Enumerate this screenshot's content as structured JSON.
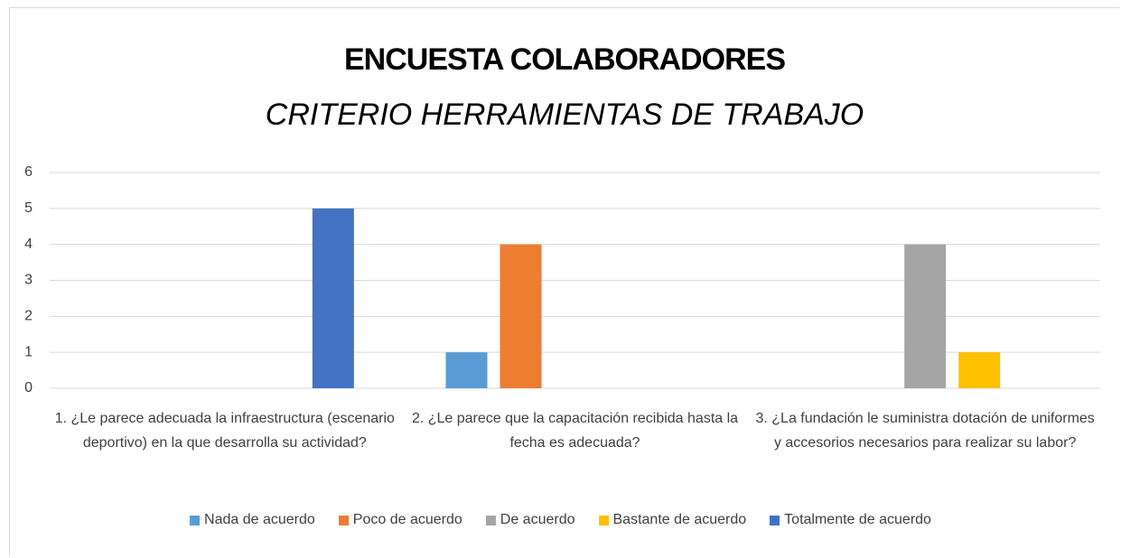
{
  "chart_data": {
    "type": "bar",
    "title": "ENCUESTA COLABORADORES",
    "subtitle": "CRITERIO HERRAMIENTAS DE TRABAJO",
    "categories": [
      "1. ¿Le parece adecuada la infraestructura (escenario deportivo)  en la que desarrolla su actividad?",
      "2. ¿Le parece que la capacitación recibida hasta la fecha es adecuada?",
      "3. ¿La fundación le suministra dotación de uniformes y accesorios necesarios para realizar su labor?"
    ],
    "series": [
      {
        "name": "Nada de acuerdo",
        "color": "#5b9bd5",
        "values": [
          0,
          1,
          0
        ]
      },
      {
        "name": "Poco de acuerdo",
        "color": "#ed7d31",
        "values": [
          0,
          4,
          0
        ]
      },
      {
        "name": "De acuerdo",
        "color": "#a5a5a5",
        "values": [
          0,
          0,
          4
        ]
      },
      {
        "name": "Bastante de acuerdo",
        "color": "#ffc000",
        "values": [
          0,
          0,
          1
        ]
      },
      {
        "name": "Totalmente de acuerdo",
        "color": "#4472c4",
        "values": [
          5,
          0,
          0
        ]
      }
    ],
    "ylim": [
      0,
      6
    ],
    "yticks": [
      0,
      1,
      2,
      3,
      4,
      5,
      6
    ],
    "grid": true,
    "legend": "bottom"
  }
}
